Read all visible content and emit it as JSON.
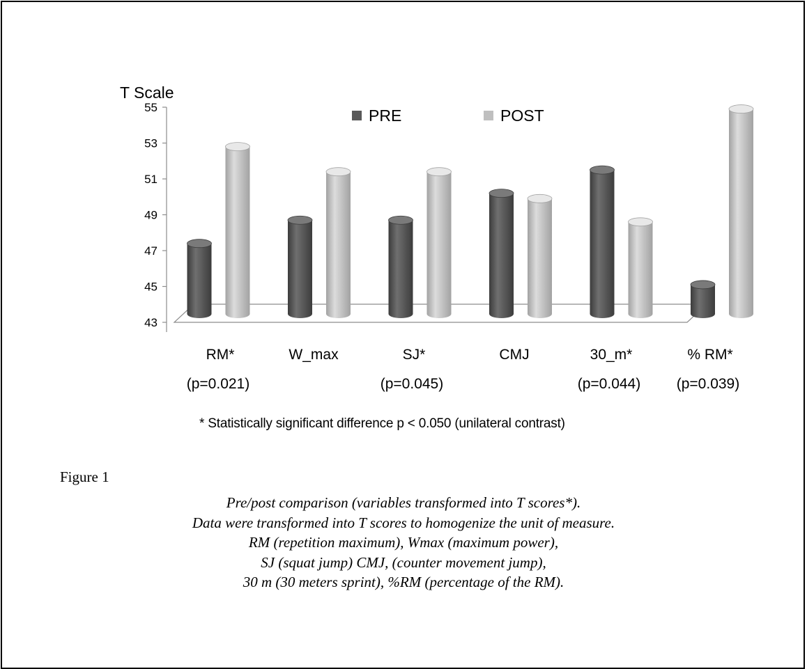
{
  "chart_data": {
    "type": "bar",
    "ylabel": "T Scale",
    "ylim": [
      43,
      55
    ],
    "yticks": [
      43,
      45,
      47,
      49,
      51,
      53,
      55
    ],
    "categories": [
      "RM*",
      "W_max",
      "SJ*",
      "CMJ",
      "30_m*",
      "% RM*"
    ],
    "category_sublabels": [
      "(p=0.021)",
      "",
      "(p=0.045)",
      "",
      "(p=0.044)",
      "(p=0.039)"
    ],
    "series": [
      {
        "name": "PRE",
        "values": [
          47.4,
          48.7,
          48.7,
          50.2,
          51.5,
          45.1
        ]
      },
      {
        "name": "POST",
        "values": [
          52.8,
          51.4,
          51.4,
          49.9,
          48.6,
          54.9
        ]
      }
    ],
    "legend_position": "top",
    "grid": false,
    "colors": {
      "PRE": "#595959",
      "POST": "#bfbfbf"
    }
  },
  "footnote": "* Statistically significant difference p < 0.050 (unilateral contrast)",
  "figure_label": "Figure 1",
  "caption_lines": [
    "Pre/post comparison (variables transformed into T scores*).",
    "Data were transformed into T scores to homogenize the unit of measure.",
    "RM (repetition maximum), Wmax (maximum power),",
    "SJ (squat jump) CMJ, (counter movement jump),",
    "30 m (30 meters sprint), %RM (percentage of the RM)."
  ]
}
